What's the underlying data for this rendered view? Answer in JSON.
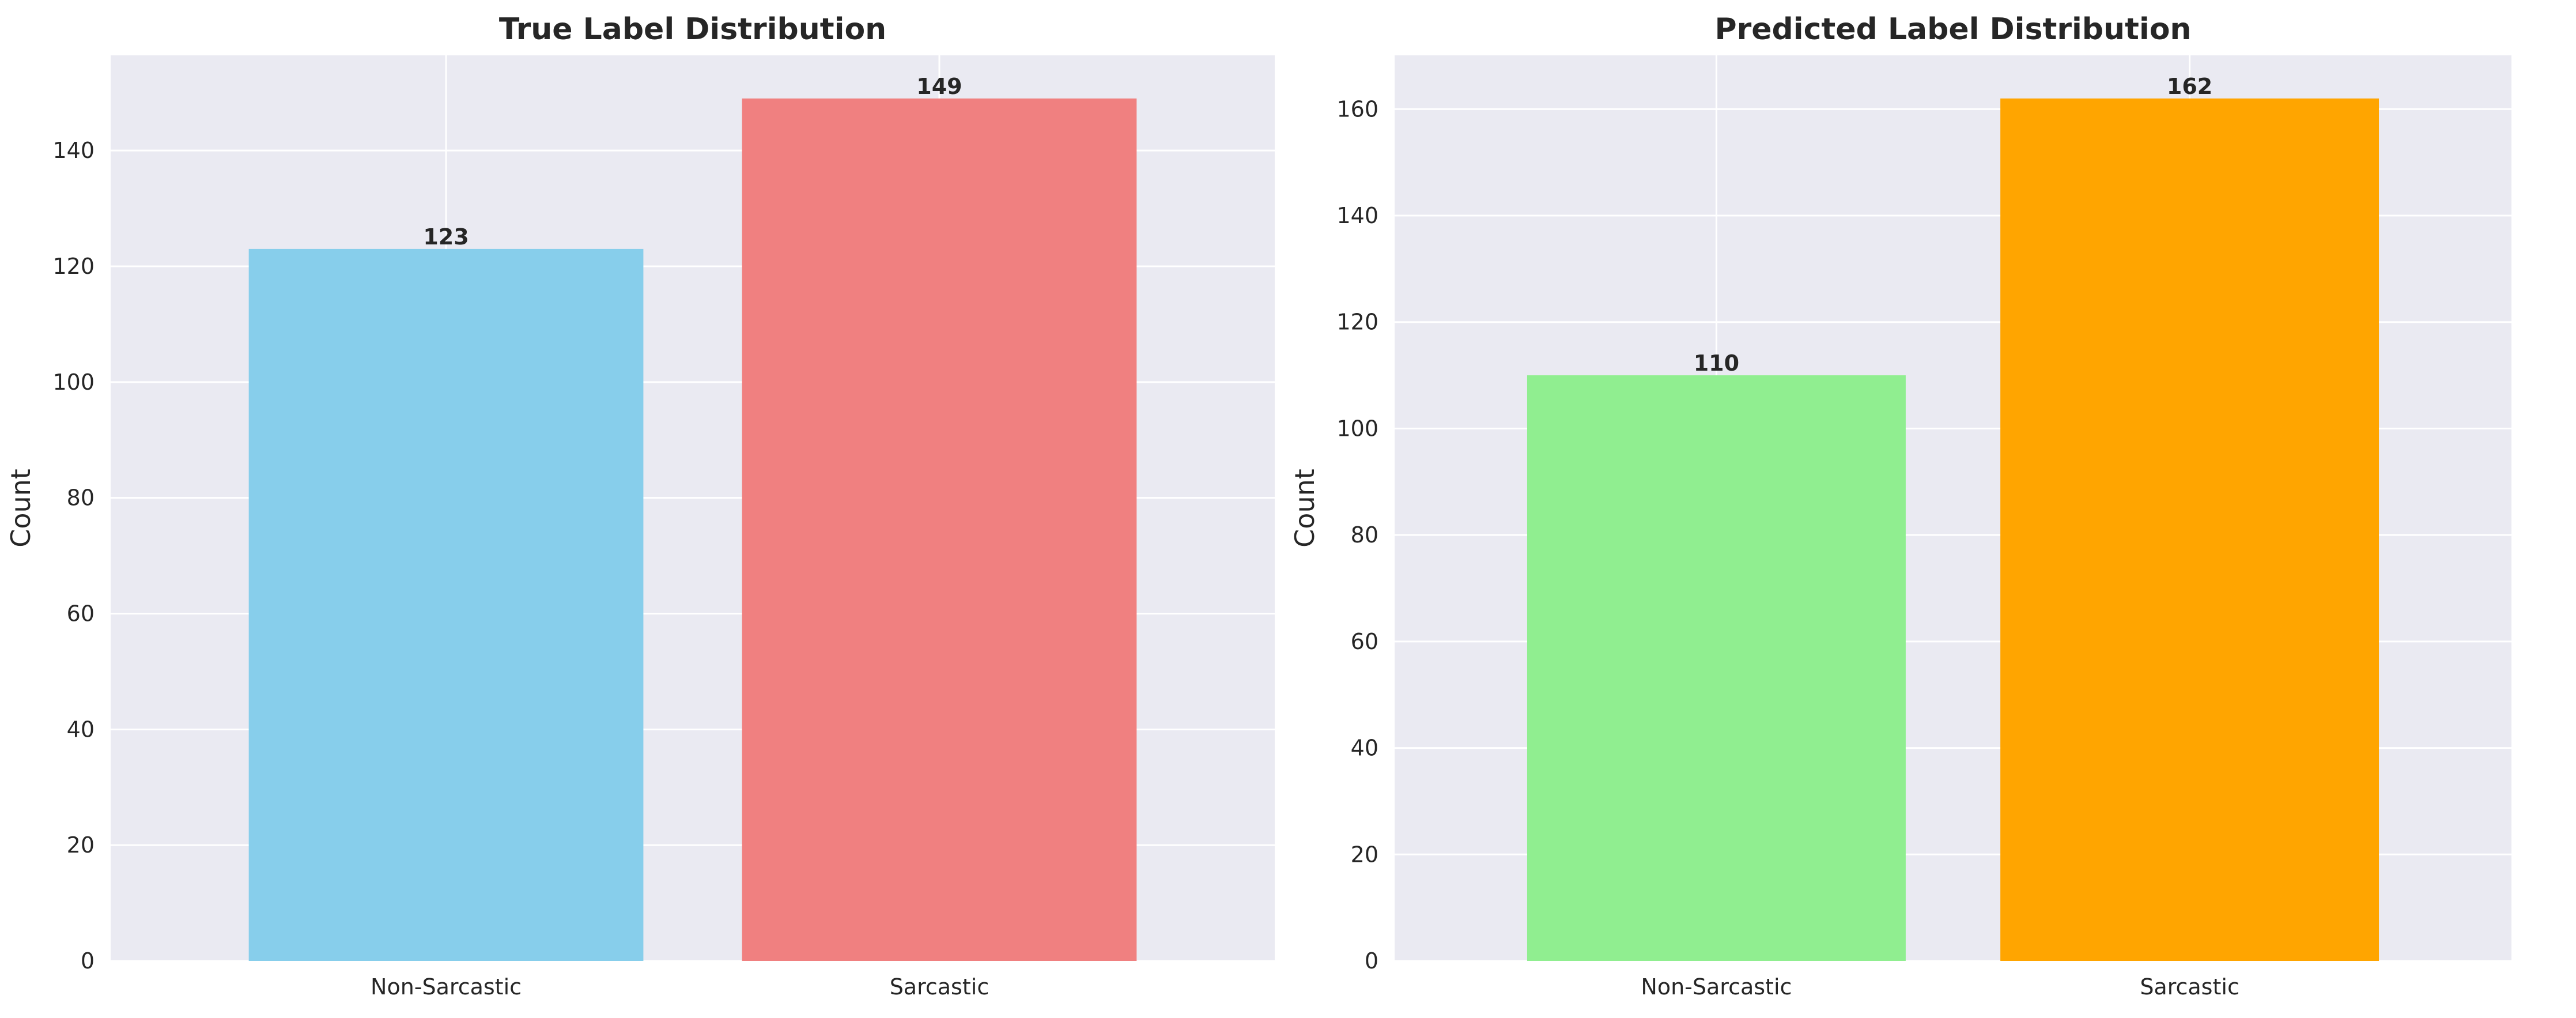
{
  "chart_data": [
    {
      "type": "bar",
      "title": "True Label Distribution",
      "xlabel": "",
      "ylabel": "Count",
      "categories": [
        "Non-Sarcastic",
        "Sarcastic"
      ],
      "values": [
        123,
        149
      ],
      "data_labels": [
        "123",
        "149"
      ],
      "colors": [
        "#87CEEB",
        "#F08080"
      ],
      "ylim": [
        0,
        156.45
      ],
      "yticks": [
        0,
        20,
        40,
        60,
        80,
        100,
        120,
        140
      ],
      "grid": true,
      "background": "#EAEAF2"
    },
    {
      "type": "bar",
      "title": "Predicted Label Distribution",
      "xlabel": "",
      "ylabel": "Count",
      "categories": [
        "Non-Sarcastic",
        "Sarcastic"
      ],
      "values": [
        110,
        162
      ],
      "data_labels": [
        "110",
        "162"
      ],
      "colors": [
        "#90EE90",
        "#FFA500"
      ],
      "ylim": [
        0,
        170.1
      ],
      "yticks": [
        0,
        20,
        40,
        60,
        80,
        100,
        120,
        140,
        160
      ],
      "grid": true,
      "background": "#EAEAF2"
    }
  ]
}
